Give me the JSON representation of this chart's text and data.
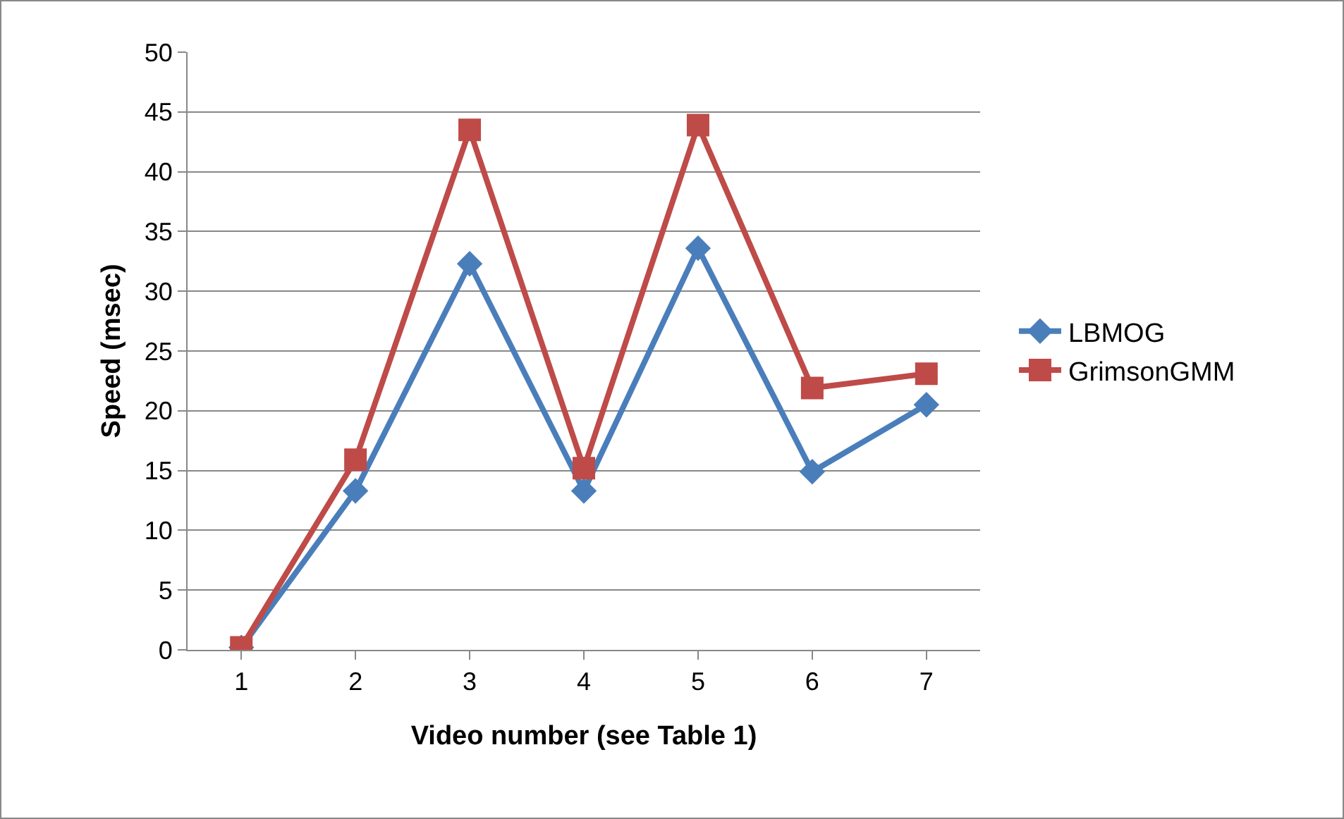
{
  "chart_data": {
    "type": "line",
    "xlabel": "Video number (see Table 1)",
    "ylabel": "Speed (msec)",
    "categories": [
      "1",
      "2",
      "3",
      "4",
      "5",
      "6",
      "7"
    ],
    "series": [
      {
        "name": "LBMOG",
        "color": "#4a7ebb",
        "marker": "diamond",
        "values": [
          0.2,
          13.3,
          32.3,
          13.3,
          33.6,
          14.9,
          20.5
        ]
      },
      {
        "name": "GrimsonGMM",
        "color": "#be4b48",
        "marker": "square",
        "values": [
          0.2,
          15.9,
          43.5,
          15.2,
          43.9,
          21.9,
          23.1
        ]
      }
    ],
    "ylim": [
      0,
      50
    ],
    "yticks": [
      0,
      5,
      10,
      15,
      20,
      25,
      30,
      35,
      40,
      45,
      50
    ],
    "grid": "y",
    "legend": "right",
    "line_style": "solid"
  }
}
